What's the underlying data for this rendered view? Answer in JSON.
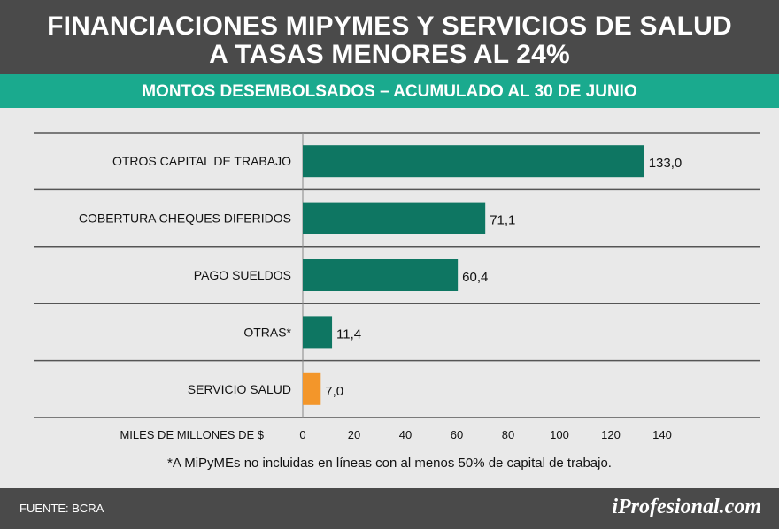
{
  "header": {
    "title_line1": "FINANCIACIONES MIPYMES Y SERVICIOS DE SALUD",
    "title_line2": "A TASAS MENORES AL 24%",
    "subtitle": "MONTOS DESEMBOLSADOS – ACUMULADO AL 30 DE JUNIO"
  },
  "colors": {
    "header_bg": "#4a4a4a",
    "subheader_bg": "#1aaa8e",
    "bar_primary": "#0e7662",
    "bar_highlight": "#f3962a",
    "background": "#e9e9e9"
  },
  "chart_data": {
    "type": "bar",
    "orientation": "horizontal",
    "categories": [
      "OTROS CAPITAL DE TRABAJO",
      "COBERTURA CHEQUES DIFERIDOS",
      "PAGO SUELDOS",
      "OTRAS*",
      "SERVICIO SALUD"
    ],
    "values": [
      133.0,
      71.1,
      60.4,
      11.4,
      7.0
    ],
    "value_labels": [
      "133,0",
      "71,1",
      "60,4",
      "11,4",
      "7,0"
    ],
    "highlight_category": "SERVICIO SALUD",
    "xlabel": "MILES DE MILLONES DE $",
    "xticks": [
      0,
      20,
      40,
      60,
      80,
      100,
      120,
      140
    ],
    "xlim": [
      0,
      140
    ],
    "title": "MONTOS DESEMBOLSADOS – ACUMULADO AL 30 DE JUNIO"
  },
  "footnote": "*A MiPyMEs no incluidas en líneas con al menos 50% de capital de trabajo.",
  "footer": {
    "source": "FUENTE: BCRA",
    "brand": "iProfesional.com"
  }
}
